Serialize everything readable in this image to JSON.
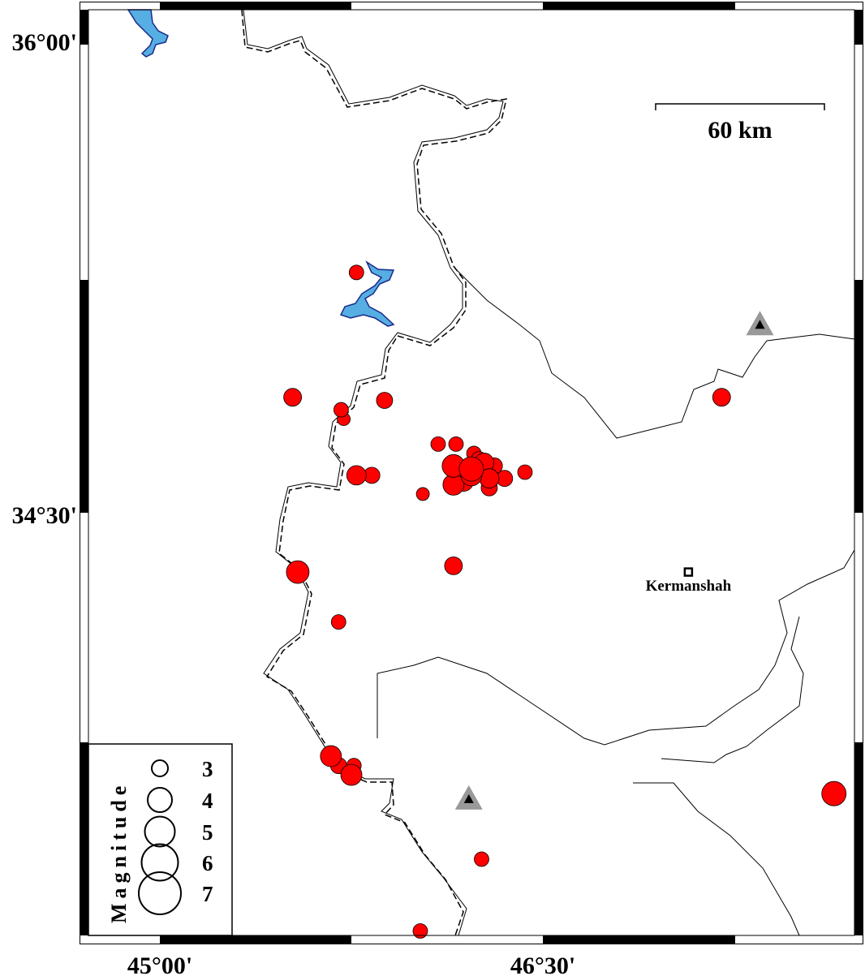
{
  "map": {
    "lat_labels": [
      "36°00'",
      "34°30'"
    ],
    "lon_labels": [
      "45°00'",
      "46°30'"
    ],
    "scale_bar_label": "60 km",
    "colors": {
      "event": "#ff0000",
      "water": "#56aee2",
      "water_edge": "#1a2a8a",
      "station": "#999999"
    },
    "events": [
      {
        "lon": 45.77,
        "lat": 35.27,
        "mag": 2.8
      },
      {
        "lon": 45.52,
        "lat": 34.87,
        "mag": 3.2
      },
      {
        "lon": 45.71,
        "lat": 34.83,
        "mag": 2.8
      },
      {
        "lon": 45.72,
        "lat": 34.8,
        "mag": 2.6
      },
      {
        "lon": 45.88,
        "lat": 34.86,
        "mag": 3.0
      },
      {
        "lon": 47.2,
        "lat": 34.87,
        "mag": 3.2
      },
      {
        "lon": 46.09,
        "lat": 34.72,
        "mag": 2.8
      },
      {
        "lon": 46.16,
        "lat": 34.72,
        "mag": 2.8
      },
      {
        "lon": 45.77,
        "lat": 34.62,
        "mag": 3.4
      },
      {
        "lon": 45.83,
        "lat": 34.62,
        "mag": 3.0
      },
      {
        "lon": 46.03,
        "lat": 34.56,
        "mag": 2.6
      },
      {
        "lon": 46.43,
        "lat": 34.63,
        "mag": 2.8
      },
      {
        "lon": 46.15,
        "lat": 34.33,
        "mag": 3.2
      },
      {
        "lon": 45.54,
        "lat": 34.31,
        "mag": 3.8
      },
      {
        "lon": 45.7,
        "lat": 34.15,
        "mag": 2.8
      },
      {
        "lon": 45.67,
        "lat": 33.72,
        "mag": 3.6
      },
      {
        "lon": 45.7,
        "lat": 33.69,
        "mag": 3.0
      },
      {
        "lon": 45.76,
        "lat": 33.69,
        "mag": 2.8
      },
      {
        "lon": 45.75,
        "lat": 33.66,
        "mag": 3.6
      },
      {
        "lon": 46.26,
        "lat": 33.39,
        "mag": 2.8
      },
      {
        "lon": 46.02,
        "lat": 33.16,
        "mag": 2.8
      },
      {
        "lon": 47.64,
        "lat": 33.6,
        "mag": 4.0
      },
      {
        "lon": 46.15,
        "lat": 34.65,
        "mag": 3.8
      },
      {
        "lon": 46.15,
        "lat": 34.59,
        "mag": 3.6
      },
      {
        "lon": 46.22,
        "lat": 34.64,
        "mag": 4.0
      },
      {
        "lon": 46.27,
        "lat": 34.66,
        "mag": 3.4
      },
      {
        "lon": 46.29,
        "lat": 34.61,
        "mag": 3.4
      },
      {
        "lon": 46.35,
        "lat": 34.61,
        "mag": 3.0
      },
      {
        "lon": 46.29,
        "lat": 34.58,
        "mag": 3.0
      },
      {
        "lon": 46.23,
        "lat": 34.69,
        "mag": 2.8
      },
      {
        "lon": 46.25,
        "lat": 34.67,
        "mag": 3.0
      },
      {
        "lon": 46.31,
        "lat": 34.65,
        "mag": 3.0
      },
      {
        "lon": 46.22,
        "lat": 34.62,
        "mag": 3.6
      },
      {
        "lon": 46.19,
        "lat": 34.6,
        "mag": 3.4
      }
    ],
    "stations": [
      {
        "lon": 47.35,
        "lat": 35.1
      },
      {
        "lon": 46.21,
        "lat": 33.58
      }
    ],
    "city": {
      "name": "Kermanshah",
      "lon": 47.07,
      "lat": 34.31
    }
  },
  "legend": {
    "title": "Magnitude",
    "magnitudes": [
      "3",
      "4",
      "5",
      "6",
      "7"
    ]
  }
}
